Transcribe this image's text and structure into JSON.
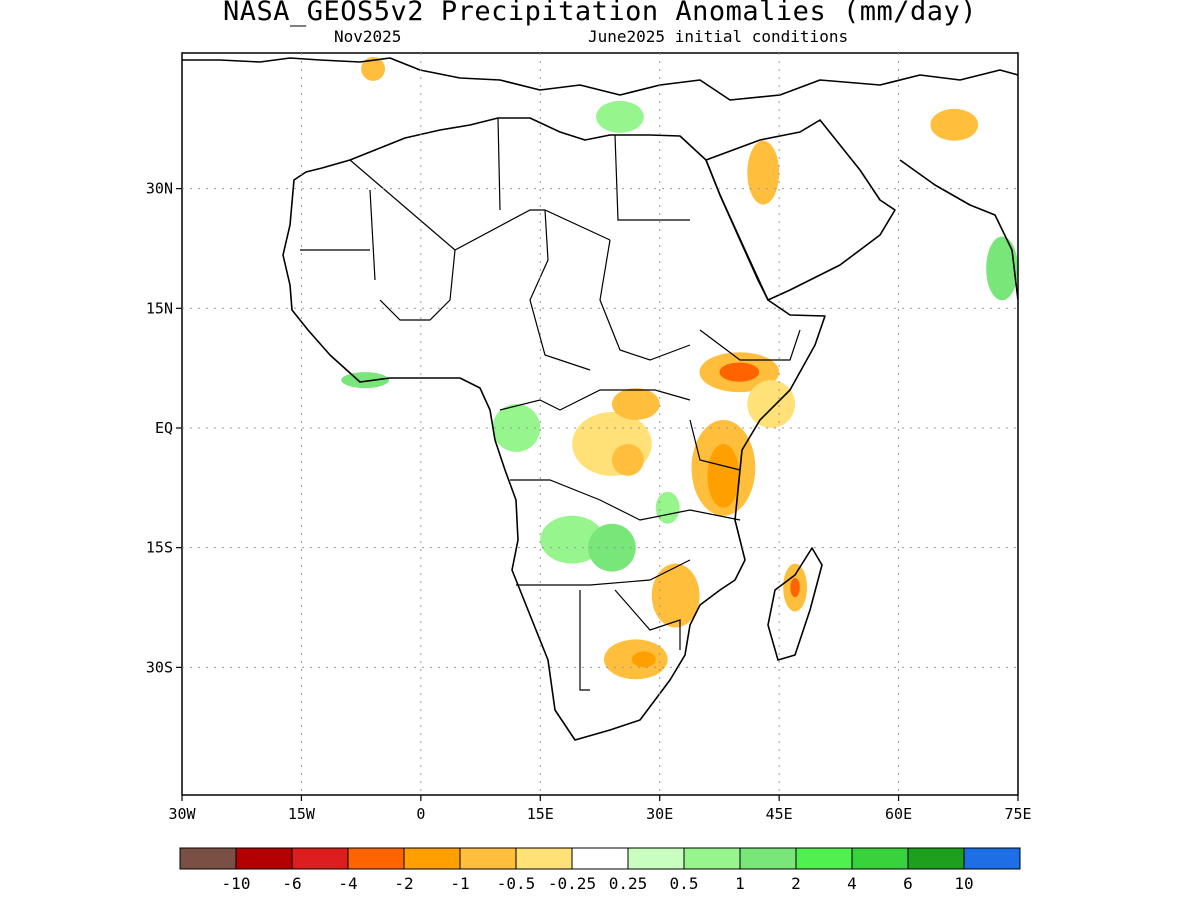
{
  "title": "NASA_GEOS5v2 Precipitation Anomalies (mm/day)",
  "subtitle_left": "Nov2025",
  "subtitle_right": "June2025 initial conditions",
  "axes": {
    "lon_range": [
      -30,
      75
    ],
    "lat_range": [
      -46,
      47
    ],
    "lon_ticks": [
      {
        "value": -30,
        "label": "30W"
      },
      {
        "value": -15,
        "label": "15W"
      },
      {
        "value": 0,
        "label": "0"
      },
      {
        "value": 15,
        "label": "15E"
      },
      {
        "value": 30,
        "label": "30E"
      },
      {
        "value": 45,
        "label": "45E"
      },
      {
        "value": 60,
        "label": "60E"
      },
      {
        "value": 75,
        "label": "75E"
      }
    ],
    "lat_ticks": [
      {
        "value": 30,
        "label": "30N"
      },
      {
        "value": 15,
        "label": "15N"
      },
      {
        "value": 0,
        "label": "EQ"
      },
      {
        "value": -15,
        "label": "15S"
      },
      {
        "value": -30,
        "label": "30S"
      }
    ],
    "grid": "dotted"
  },
  "colorbar": {
    "colors": [
      "#7b5044",
      "#b40000",
      "#dc1e1e",
      "#ff6400",
      "#ffa000",
      "#ffbe3c",
      "#ffe178",
      "#ffffff",
      "#c8ffbe",
      "#96f58c",
      "#78e678",
      "#50f050",
      "#37d23c",
      "#1ea01e",
      "#1e6ee6"
    ],
    "labels": [
      "-10",
      "-6",
      "-4",
      "-2",
      "-1",
      "-0.5",
      "-0.25",
      "0.25",
      "0.5",
      "1",
      "2",
      "4",
      "6",
      "10"
    ]
  },
  "anomaly_regions": [
    {
      "name": "east-africa-dry",
      "lon": 38,
      "lat": -5,
      "rx": 4,
      "ry": 6,
      "color": "#ffbe3c"
    },
    {
      "name": "east-africa-core",
      "lon": 38,
      "lat": -6,
      "rx": 2,
      "ry": 4,
      "color": "#ffa000"
    },
    {
      "name": "ethiopia-dry",
      "lon": 40,
      "lat": 7,
      "rx": 5,
      "ry": 2.5,
      "color": "#ffbe3c"
    },
    {
      "name": "ethiopia-core",
      "lon": 40,
      "lat": 7,
      "rx": 2.5,
      "ry": 1.2,
      "color": "#ff6400"
    },
    {
      "name": "somalia-dry",
      "lon": 44,
      "lat": 3,
      "rx": 3,
      "ry": 3,
      "color": "#ffe178"
    },
    {
      "name": "drc-dry",
      "lon": 24,
      "lat": -2,
      "rx": 5,
      "ry": 4,
      "color": "#ffe178"
    },
    {
      "name": "drc-core",
      "lon": 26,
      "lat": -4,
      "rx": 2,
      "ry": 2,
      "color": "#ffbe3c"
    },
    {
      "name": "drc-north",
      "lon": 27,
      "lat": 3,
      "rx": 3,
      "ry": 2,
      "color": "#ffbe3c"
    },
    {
      "name": "congo-wet",
      "lon": 12,
      "lat": 0,
      "rx": 3,
      "ry": 3,
      "color": "#96f58c"
    },
    {
      "name": "angola-wet",
      "lon": 19,
      "lat": -14,
      "rx": 4,
      "ry": 3,
      "color": "#96f58c"
    },
    {
      "name": "zambia-wet",
      "lon": 24,
      "lat": -15,
      "rx": 3,
      "ry": 3,
      "color": "#78e678"
    },
    {
      "name": "tanzania-wet",
      "lon": 31,
      "lat": -10,
      "rx": 1.5,
      "ry": 2,
      "color": "#96f58c"
    },
    {
      "name": "mozambique-dry",
      "lon": 32,
      "lat": -21,
      "rx": 3,
      "ry": 4,
      "color": "#ffbe3c"
    },
    {
      "name": "south-africa-dry",
      "lon": 27,
      "lat": -29,
      "rx": 4,
      "ry": 2.5,
      "color": "#ffbe3c"
    },
    {
      "name": "south-africa-core",
      "lon": 28,
      "lat": -29,
      "rx": 1.5,
      "ry": 1,
      "color": "#ffa000"
    },
    {
      "name": "madagascar-dry",
      "lon": 47,
      "lat": -20,
      "rx": 1.5,
      "ry": 3,
      "color": "#ffbe3c"
    },
    {
      "name": "madagascar-core",
      "lon": 47,
      "lat": -20,
      "rx": 0.6,
      "ry": 1.2,
      "color": "#ff6400"
    },
    {
      "name": "arabia-dry",
      "lon": 43,
      "lat": 32,
      "rx": 2,
      "ry": 4,
      "color": "#ffbe3c"
    },
    {
      "name": "iran-dry",
      "lon": 67,
      "lat": 38,
      "rx": 3,
      "ry": 2,
      "color": "#ffbe3c"
    },
    {
      "name": "india-wet",
      "lon": 73,
      "lat": 20,
      "rx": 2,
      "ry": 4,
      "color": "#78e678"
    },
    {
      "name": "west-africa-wet",
      "lon": -7,
      "lat": 6,
      "rx": 3,
      "ry": 1,
      "color": "#78e678"
    },
    {
      "name": "mediterranean-wet",
      "lon": 25,
      "lat": 39,
      "rx": 3,
      "ry": 2,
      "color": "#96f58c"
    },
    {
      "name": "morocco-dry",
      "lon": -6,
      "lat": 45,
      "rx": 1.5,
      "ry": 1.5,
      "color": "#ffbe3c"
    }
  ]
}
